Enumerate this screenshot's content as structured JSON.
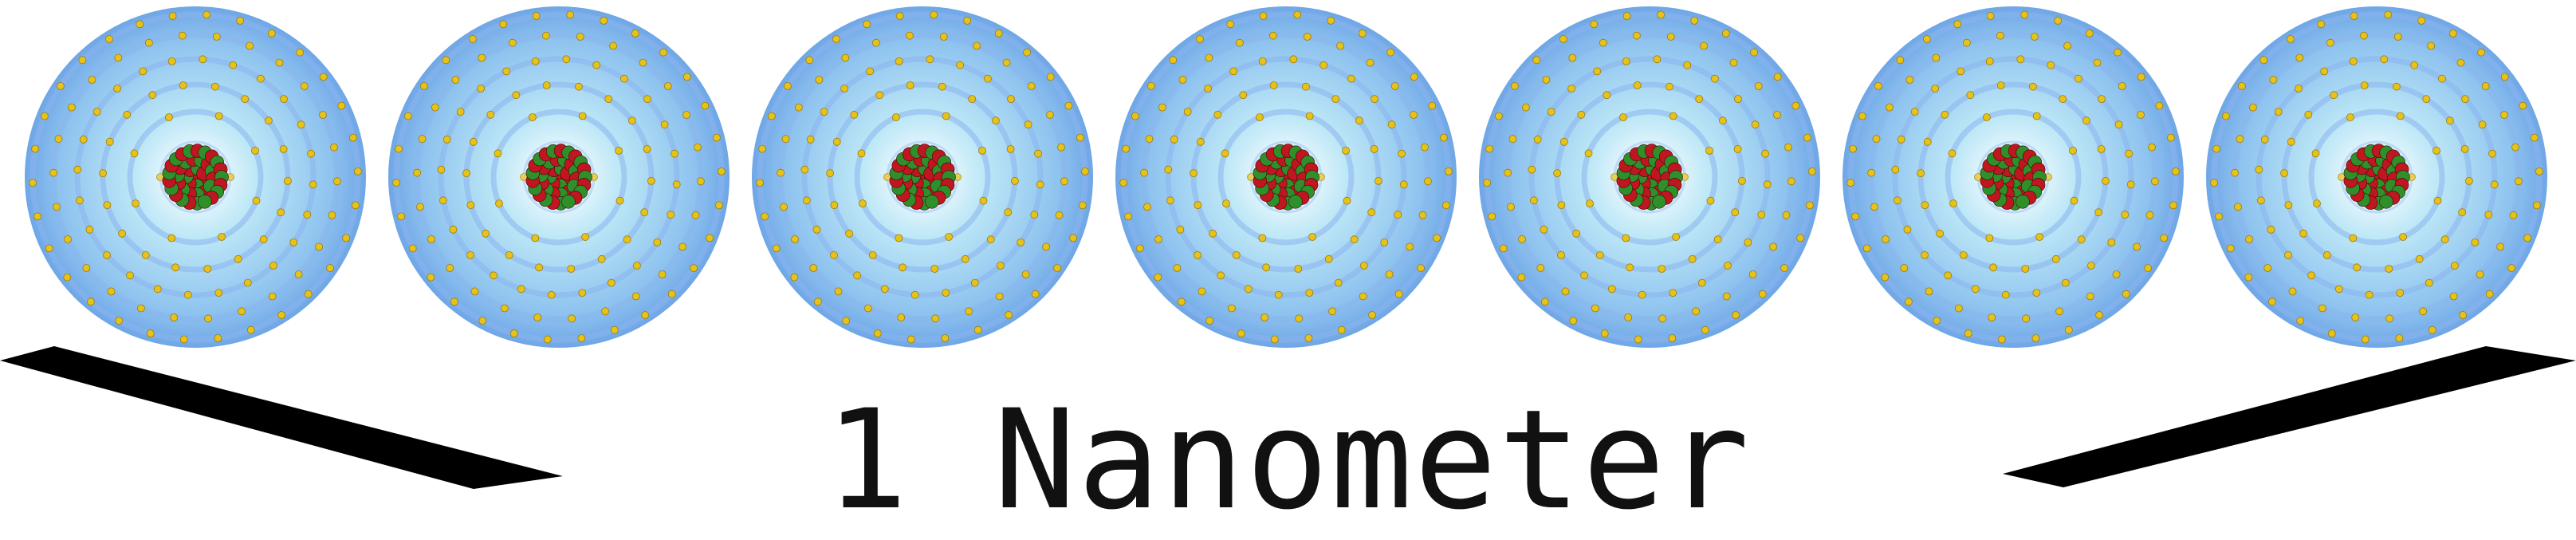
{
  "caption": "1 Nanometer",
  "atom_count": 7,
  "colors": {
    "cloud_outer": "#6fa6e6",
    "cloud_inner": "#bfe8f7",
    "shell_ring": "#8ab4ee",
    "electron": "#e7c21c",
    "proton": "#c0161f",
    "neutron": "#2f8f2a",
    "brace": "#000000",
    "caption_text": "#111111"
  },
  "icons": [
    "atom-icon",
    "scale-brace-icon"
  ]
}
